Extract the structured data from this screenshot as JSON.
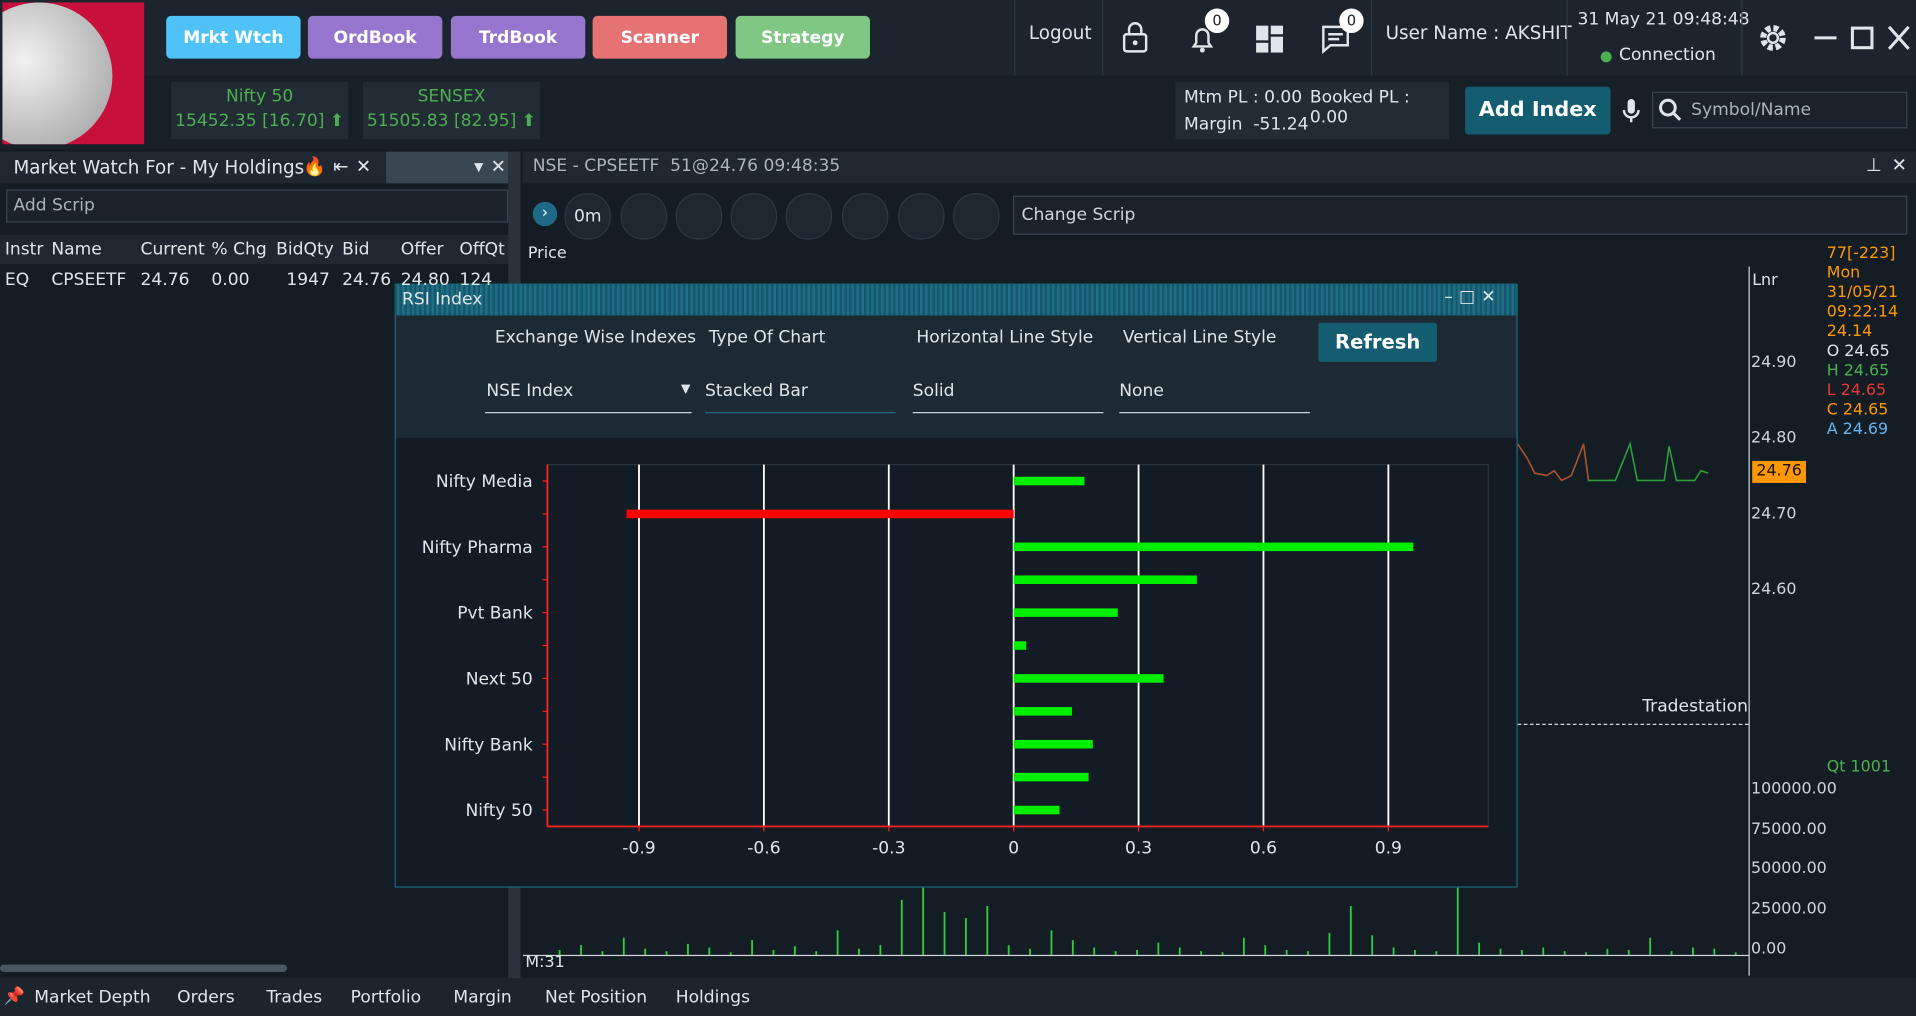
{
  "toolbar": {
    "buttons": [
      "Mrkt Wtch",
      "OrdBook",
      "TrdBook",
      "Scanner",
      "Strategy"
    ],
    "logout": "Logout",
    "notifications": "0",
    "messages": "0",
    "user": "User Name : AKSHIT",
    "datetime": "31 May 21 09:48:48",
    "connection": "Connection"
  },
  "indices": [
    {
      "name": "Nifty 50",
      "value": "15452.35 [16.70]"
    },
    {
      "name": "SENSEX",
      "value": "51505.83 [82.95]"
    }
  ],
  "pl": {
    "mtm": "Mtm PL : 0.00",
    "booked": "Booked PL : 0.00",
    "margin": "Margin  -51.24"
  },
  "add_index": "Add Index",
  "search_placeholder": "Symbol/Name",
  "market_watch": {
    "title": "Market Watch For - My Holdings",
    "add_scrip": "Add Scrip",
    "columns": [
      "Instr",
      "Name",
      "Current",
      "% Chg",
      "BidQty",
      "Bid",
      "Offer",
      "OffQt"
    ],
    "rows": [
      [
        "EQ",
        "CPSEETF",
        "24.76",
        "0.00",
        "1947",
        "24.76",
        "24.80",
        "124"
      ]
    ]
  },
  "chart_window": {
    "title": "NSE - CPSEETF  51@24.76 09:48:35",
    "interval": "0m",
    "change_scrip": "Change Scrip",
    "price_label": "Price",
    "lnr": "Lnr",
    "ohlc": [
      "77[-223]",
      "Mon",
      "31/05/21",
      "09:22:14",
      "24.14",
      "O 24.65",
      "H 24.65",
      "L 24.65",
      "C 24.65",
      "A 24.69"
    ],
    "price_ticks": [
      "24.90",
      "24.80",
      "24.70",
      "24.60"
    ],
    "last_price": "24.76",
    "tradestation": "Tradestation",
    "qty": "Qt 1001",
    "volume_ticks": [
      "100000.00",
      "75000.00",
      "50000.00",
      "25000.00",
      "0.00"
    ],
    "footer": "M:31"
  },
  "rsi_dialog": {
    "title": "RSI Index",
    "fields": [
      {
        "label": "Exchange Wise Indexes",
        "value": "NSE Index"
      },
      {
        "label": "Type Of Chart",
        "value": "Stacked Bar"
      },
      {
        "label": "Horizontal Line Style",
        "value": "Solid"
      },
      {
        "label": "Vertical Line Style",
        "value": "None"
      }
    ],
    "refresh": "Refresh"
  },
  "chart_data": {
    "type": "hbar",
    "categories": [
      "Nifty Media",
      null,
      "Nifty Pharma",
      null,
      "Pvt Bank",
      null,
      "Next 50",
      null,
      "Nifty Bank",
      null,
      "Nifty 50"
    ],
    "values": [
      0.17,
      -0.93,
      0.96,
      0.44,
      0.25,
      0.03,
      0.36,
      0.14,
      0.19,
      0.18,
      0.11
    ],
    "colors": [
      "#00ee00",
      "#ff0000",
      "#00ee00",
      "#00ee00",
      "#00ee00",
      "#00ee00",
      "#00ee00",
      "#00ee00",
      "#00ee00",
      "#00ee00",
      "#00ee00"
    ],
    "xlim": [
      -1.12,
      1.14
    ],
    "xticks": [
      -0.9,
      -0.6,
      -0.3,
      0,
      0.3,
      0.6,
      0.9
    ],
    "grid": true
  },
  "bottom_tabs": [
    "Market Depth",
    "Orders",
    "Trades",
    "Portfolio",
    "Margin",
    "Net Position",
    "Holdings"
  ]
}
